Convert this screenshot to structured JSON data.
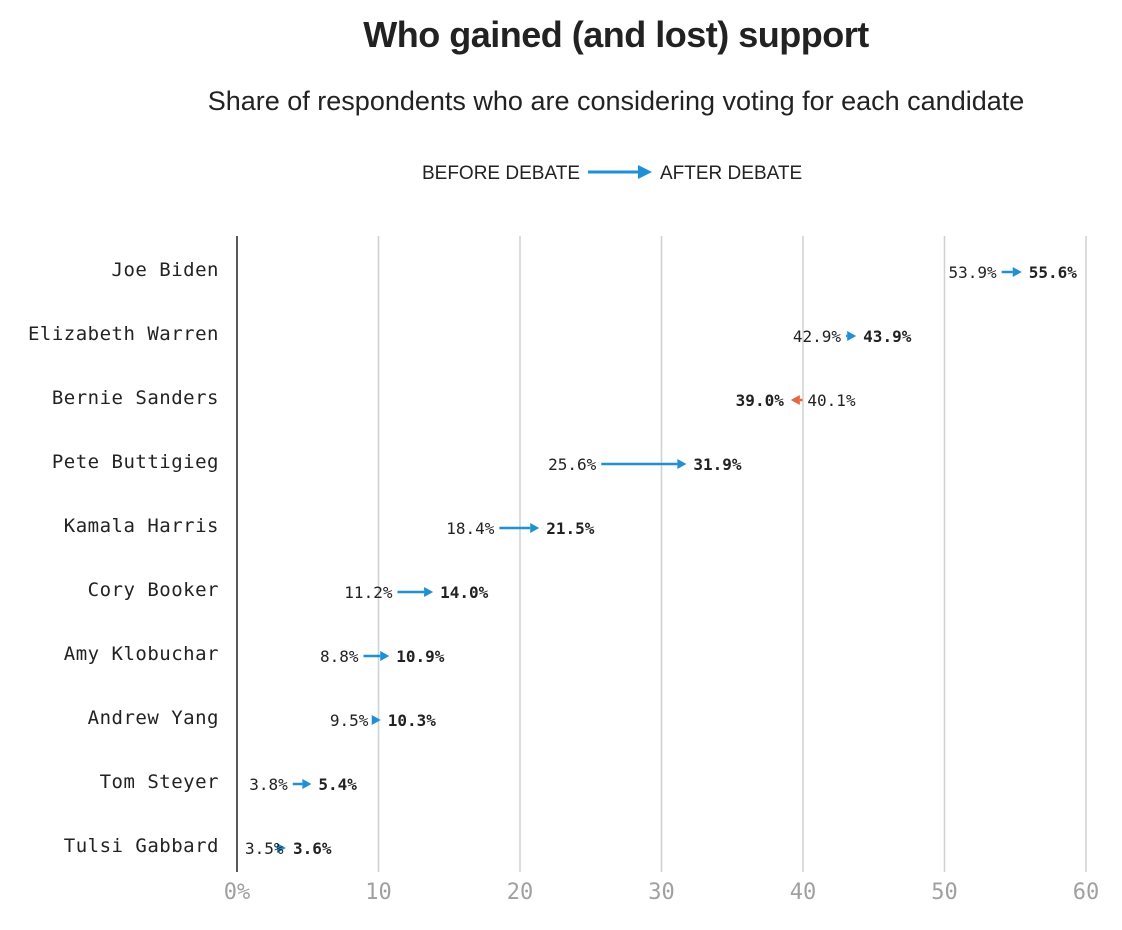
{
  "chart_data": {
    "type": "arrow",
    "title": "Who gained (and lost) support",
    "subtitle": "Share of respondents who are considering voting for each candidate",
    "legend": {
      "before_label": "BEFORE DEBATE",
      "after_label": "AFTER DEBATE",
      "placement": "top-center"
    },
    "x_ticks": [
      "0%",
      "10",
      "20",
      "30",
      "40",
      "50",
      "60"
    ],
    "xlim": [
      0,
      60
    ],
    "grid": true,
    "colors": {
      "gain": "#1f8fd6",
      "loss": "#e8643c",
      "grid": "#d0d0d0",
      "axis": "#222222",
      "tick": "#a0a0a0"
    },
    "candidates": [
      "Joe Biden",
      "Elizabeth Warren",
      "Bernie Sanders",
      "Pete Buttigieg",
      "Kamala Harris",
      "Cory Booker",
      "Amy Klobuchar",
      "Andrew Yang",
      "Tom Steyer",
      "Tulsi Gabbard"
    ],
    "before": [
      53.9,
      42.9,
      40.1,
      25.6,
      18.4,
      11.2,
      8.8,
      9.5,
      3.8,
      3.5
    ],
    "after": [
      55.6,
      43.9,
      39.0,
      31.9,
      21.5,
      14.0,
      10.9,
      10.3,
      5.4,
      3.6
    ],
    "before_labels": [
      "53.9%",
      "42.9%",
      "40.1%",
      "25.6%",
      "18.4%",
      "11.2%",
      "8.8%",
      "9.5%",
      "3.8%",
      "3.5%"
    ],
    "after_labels": [
      "55.6%",
      "43.9%",
      "39.0%",
      "31.9%",
      "21.5%",
      "14.0%",
      "10.9%",
      "10.3%",
      "5.4%",
      "3.6%"
    ]
  }
}
